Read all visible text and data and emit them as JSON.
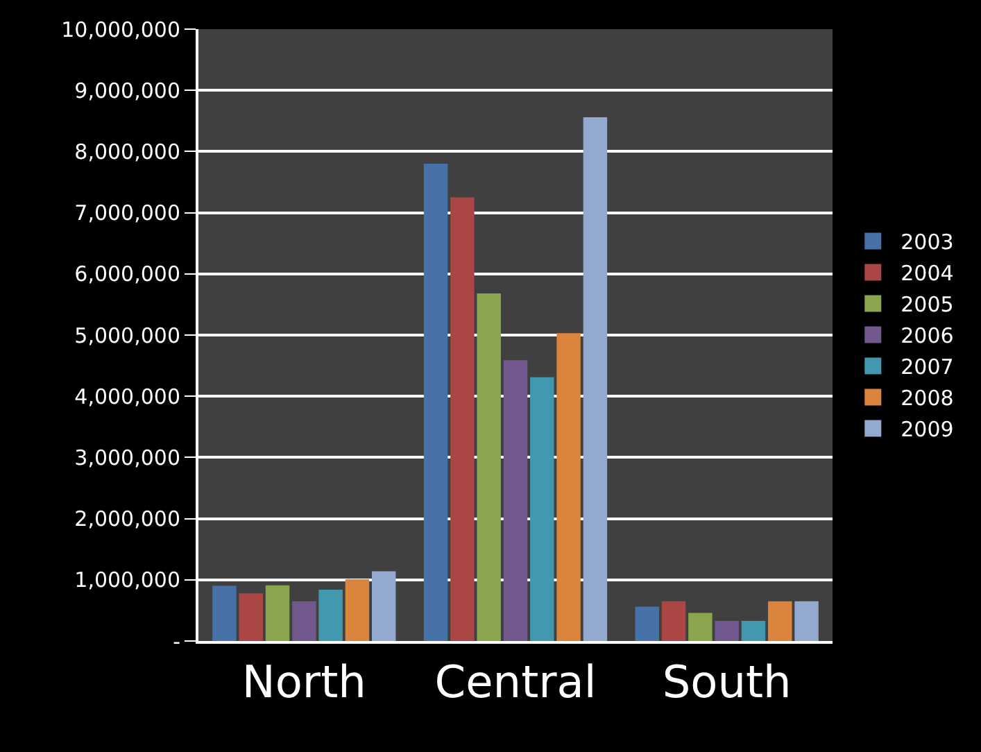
{
  "chart_data": {
    "type": "bar",
    "categories": [
      "North",
      "Central",
      "South"
    ],
    "series": [
      {
        "name": "2003",
        "color": "#4672a8",
        "values": [
          900000,
          7800000,
          560000
        ]
      },
      {
        "name": "2004",
        "color": "#aa4644",
        "values": [
          780000,
          7250000,
          650000
        ]
      },
      {
        "name": "2005",
        "color": "#89a54e",
        "values": [
          910000,
          5680000,
          460000
        ]
      },
      {
        "name": "2006",
        "color": "#71588f",
        "values": [
          650000,
          4590000,
          330000
        ]
      },
      {
        "name": "2007",
        "color": "#4198af",
        "values": [
          840000,
          4310000,
          330000
        ]
      },
      {
        "name": "2008",
        "color": "#db843d",
        "values": [
          1010000,
          5030000,
          650000
        ]
      },
      {
        "name": "2009",
        "color": "#93a9cf",
        "values": [
          1140000,
          8560000,
          650000
        ]
      }
    ],
    "ylim": [
      0,
      10000000
    ],
    "yticks": [
      {
        "value": 0,
        "label": "-"
      },
      {
        "value": 1000000,
        "label": "1,000,000"
      },
      {
        "value": 2000000,
        "label": "2,000,000"
      },
      {
        "value": 3000000,
        "label": "3,000,000"
      },
      {
        "value": 4000000,
        "label": "4,000,000"
      },
      {
        "value": 5000000,
        "label": "5,000,000"
      },
      {
        "value": 6000000,
        "label": "6,000,000"
      },
      {
        "value": 7000000,
        "label": "7,000,000"
      },
      {
        "value": 8000000,
        "label": "8,000,000"
      },
      {
        "value": 9000000,
        "label": "9,000,000"
      },
      {
        "value": 10000000,
        "label": "10,000,000"
      }
    ],
    "grid": "y",
    "legend": "right"
  }
}
